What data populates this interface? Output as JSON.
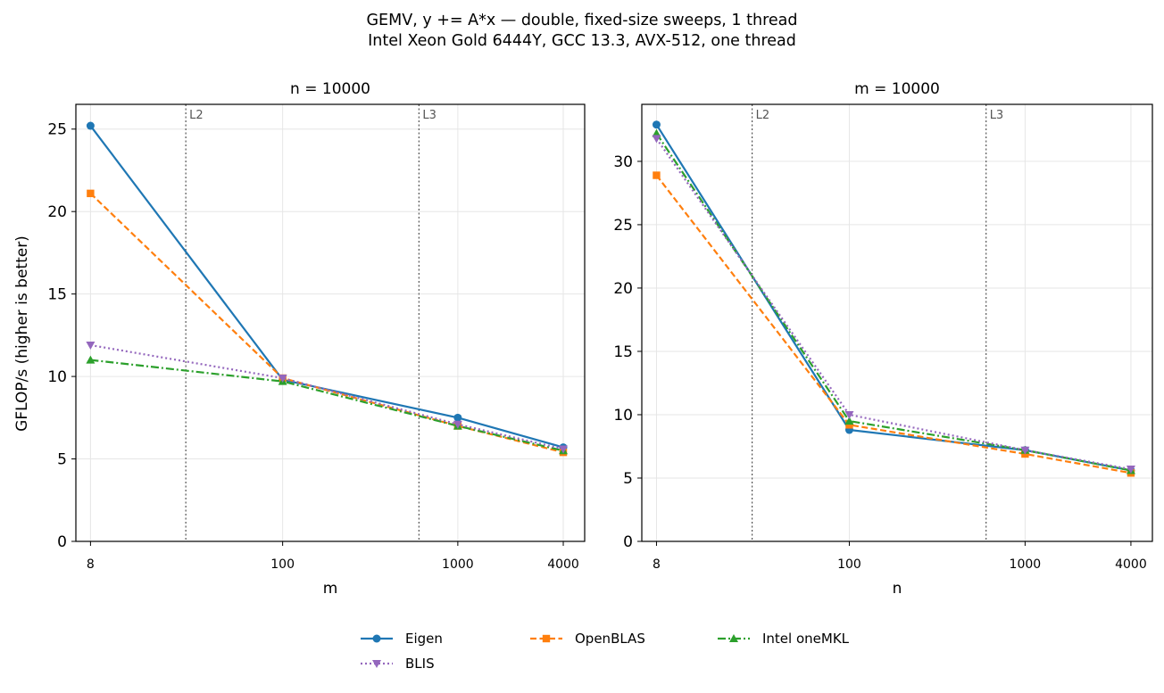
{
  "title_line1": "GEMV, y += A*x — double, fixed-size sweeps, 1 thread",
  "title_line2": "Intel Xeon Gold 6444Y, GCC 13.3, AVX-512, one thread",
  "chart_data": [
    {
      "type": "line",
      "title": "n = 10000",
      "xlabel": "m",
      "ylabel": "GFLOP/s (higher is better)",
      "xscale": "log",
      "xticks": [
        8,
        100,
        1000,
        4000
      ],
      "x": [
        8,
        100,
        1000,
        4000
      ],
      "ylim": [
        0,
        26.5
      ],
      "yticks": [
        0,
        5,
        10,
        15,
        20,
        25
      ],
      "grid": true,
      "vlines": [
        {
          "x": 28,
          "label": "L2"
        },
        {
          "x": 600,
          "label": "L3"
        }
      ],
      "series": [
        {
          "name": "Eigen",
          "color": "#1f77b4",
          "dash": "solid",
          "marker": "circle",
          "values": [
            25.2,
            9.8,
            7.5,
            5.7
          ]
        },
        {
          "name": "OpenBLAS",
          "color": "#ff7f0e",
          "dash": "dashed",
          "marker": "square",
          "values": [
            21.1,
            9.9,
            7.0,
            5.4
          ]
        },
        {
          "name": "Intel oneMKL",
          "color": "#2ca02c",
          "dash": "dashdot",
          "marker": "triangle-up",
          "values": [
            11.0,
            9.7,
            7.0,
            5.5
          ]
        },
        {
          "name": "BLIS",
          "color": "#9467bd",
          "dash": "dotted",
          "marker": "triangle-down",
          "values": [
            11.9,
            9.9,
            7.1,
            5.6
          ]
        }
      ]
    },
    {
      "type": "line",
      "title": "m = 10000",
      "xlabel": "n",
      "ylabel": "",
      "xscale": "log",
      "xticks": [
        8,
        100,
        1000,
        4000
      ],
      "x": [
        8,
        100,
        1000,
        4000
      ],
      "ylim": [
        0,
        34.5
      ],
      "yticks": [
        0,
        5,
        10,
        15,
        20,
        25,
        30
      ],
      "grid": true,
      "vlines": [
        {
          "x": 28,
          "label": "L2"
        },
        {
          "x": 600,
          "label": "L3"
        }
      ],
      "series": [
        {
          "name": "Eigen",
          "color": "#1f77b4",
          "dash": "solid",
          "marker": "circle",
          "values": [
            32.9,
            8.8,
            7.2,
            5.6
          ]
        },
        {
          "name": "OpenBLAS",
          "color": "#ff7f0e",
          "dash": "dashed",
          "marker": "square",
          "values": [
            28.9,
            9.2,
            6.9,
            5.4
          ]
        },
        {
          "name": "Intel oneMKL",
          "color": "#2ca02c",
          "dash": "dashdot",
          "marker": "triangle-up",
          "values": [
            32.2,
            9.5,
            7.2,
            5.6
          ]
        },
        {
          "name": "BLIS",
          "color": "#9467bd",
          "dash": "dotted",
          "marker": "triangle-down",
          "values": [
            31.8,
            10.0,
            7.2,
            5.7
          ]
        }
      ]
    }
  ],
  "legend": {
    "placement": "bottom-center",
    "items": [
      {
        "label": "Eigen",
        "color": "#1f77b4",
        "dash": "solid",
        "marker": "circle"
      },
      {
        "label": "OpenBLAS",
        "color": "#ff7f0e",
        "dash": "dashed",
        "marker": "square"
      },
      {
        "label": "Intel oneMKL",
        "color": "#2ca02c",
        "dash": "dashdot",
        "marker": "triangle-up"
      },
      {
        "label": "BLIS",
        "color": "#9467bd",
        "dash": "dotted",
        "marker": "triangle-down"
      }
    ]
  }
}
